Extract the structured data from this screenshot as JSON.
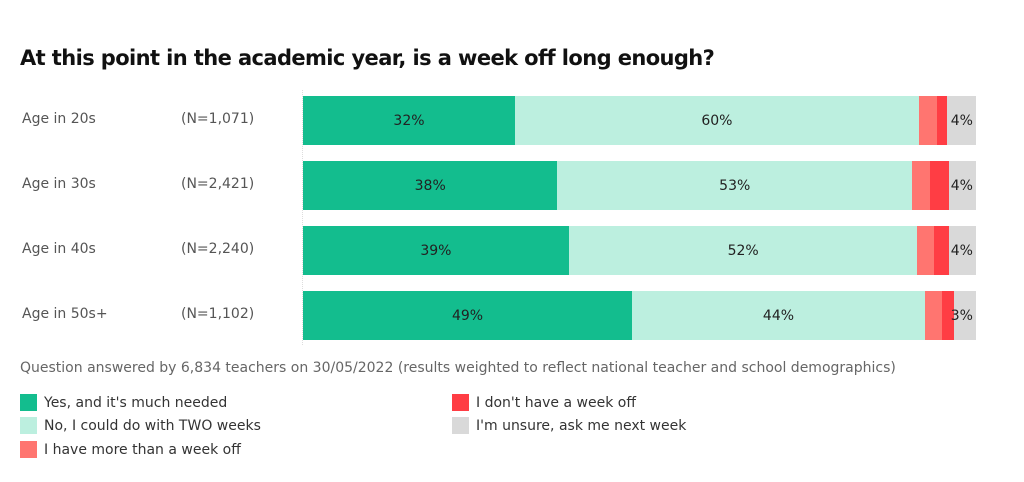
{
  "chart_data": {
    "type": "bar",
    "orientation": "horizontal",
    "stacked": true,
    "normalized": true,
    "title": "At this point in the academic year, is a week off long enough?",
    "categories": [
      "Age in 20s",
      "Age in 30s",
      "Age in 40s",
      "Age in 50s+"
    ],
    "sample_sizes": [
      "(N=1,071)",
      "(N=2,421)",
      "(N=2,240)",
      "(N=1,102)"
    ],
    "series": [
      {
        "name": "Yes, and it's much needed",
        "color": "#13bd8e",
        "values": [
          32,
          38,
          39,
          49
        ],
        "labels": [
          "32%",
          "38%",
          "39%",
          "49%"
        ]
      },
      {
        "name": "No, I could do with TWO weeks",
        "color": "#bcefdf",
        "values": [
          60,
          53,
          52,
          44
        ],
        "labels": [
          "60%",
          "53%",
          "52%",
          "44%"
        ]
      },
      {
        "name": "I have more than a week off",
        "color": "#ff7570",
        "values": [
          2.5,
          2.5,
          2.5,
          2.5
        ],
        "labels": [
          "",
          "",
          "",
          ""
        ]
      },
      {
        "name": "I don't have a week off",
        "color": "#ff3d44",
        "values": [
          1.5,
          2.5,
          2.5,
          1.5
        ],
        "labels": [
          "",
          "",
          "",
          ""
        ]
      },
      {
        "name": "I'm unsure, ask me next week",
        "color": "#d9d9d9",
        "values": [
          4,
          4,
          4,
          3
        ],
        "labels": [
          "4%",
          "4%",
          "4%",
          "3%"
        ]
      }
    ],
    "xlim": [
      0,
      100
    ],
    "grid": false,
    "legend_position": "bottom",
    "note": "Question answered by 6,834 teachers on 30/05/2022 (results weighted to reflect national teacher and school demographics)"
  },
  "rows": [
    {
      "label": "Age in 20s",
      "n": "(N=1,071)",
      "segs": [
        {
          "w": 31.5,
          "c": "#13bd8e",
          "t": "32%"
        },
        {
          "w": 60.0,
          "c": "#bcefdf",
          "t": "60%"
        },
        {
          "w": 2.7,
          "c": "#ff7570",
          "t": ""
        },
        {
          "w": 1.5,
          "c": "#ff3d44",
          "t": ""
        },
        {
          "w": 4.3,
          "c": "#d9d9d9",
          "t": "4%"
        }
      ]
    },
    {
      "label": "Age in 30s",
      "n": "(N=2,421)",
      "segs": [
        {
          "w": 37.8,
          "c": "#13bd8e",
          "t": "38%"
        },
        {
          "w": 52.7,
          "c": "#bcefdf",
          "t": "53%"
        },
        {
          "w": 2.7,
          "c": "#ff7570",
          "t": ""
        },
        {
          "w": 2.8,
          "c": "#ff3d44",
          "t": ""
        },
        {
          "w": 4.0,
          "c": "#d9d9d9",
          "t": "4%"
        }
      ]
    },
    {
      "label": "Age in 40s",
      "n": "(N=2,240)",
      "segs": [
        {
          "w": 39.5,
          "c": "#13bd8e",
          "t": "39%"
        },
        {
          "w": 51.8,
          "c": "#bcefdf",
          "t": "52%"
        },
        {
          "w": 2.4,
          "c": "#ff7570",
          "t": ""
        },
        {
          "w": 2.3,
          "c": "#ff3d44",
          "t": ""
        },
        {
          "w": 4.0,
          "c": "#d9d9d9",
          "t": "4%"
        }
      ]
    },
    {
      "label": "Age in 50s+",
      "n": "(N=1,102)",
      "segs": [
        {
          "w": 48.9,
          "c": "#13bd8e",
          "t": "49%"
        },
        {
          "w": 43.5,
          "c": "#bcefdf",
          "t": "44%"
        },
        {
          "w": 2.5,
          "c": "#ff7570",
          "t": ""
        },
        {
          "w": 1.8,
          "c": "#ff3d44",
          "t": ""
        },
        {
          "w": 3.3,
          "c": "#d9d9d9",
          "t": "3%"
        }
      ]
    }
  ],
  "legend": [
    {
      "label": "Yes, and it's much needed",
      "color": "#13bd8e"
    },
    {
      "label": "No, I could do with TWO weeks",
      "color": "#bcefdf"
    },
    {
      "label": "I have more than a week off",
      "color": "#ff7570"
    },
    {
      "label": "I don't have a week off",
      "color": "#ff3d44"
    },
    {
      "label": "I'm unsure, ask me next week",
      "color": "#d9d9d9"
    }
  ]
}
